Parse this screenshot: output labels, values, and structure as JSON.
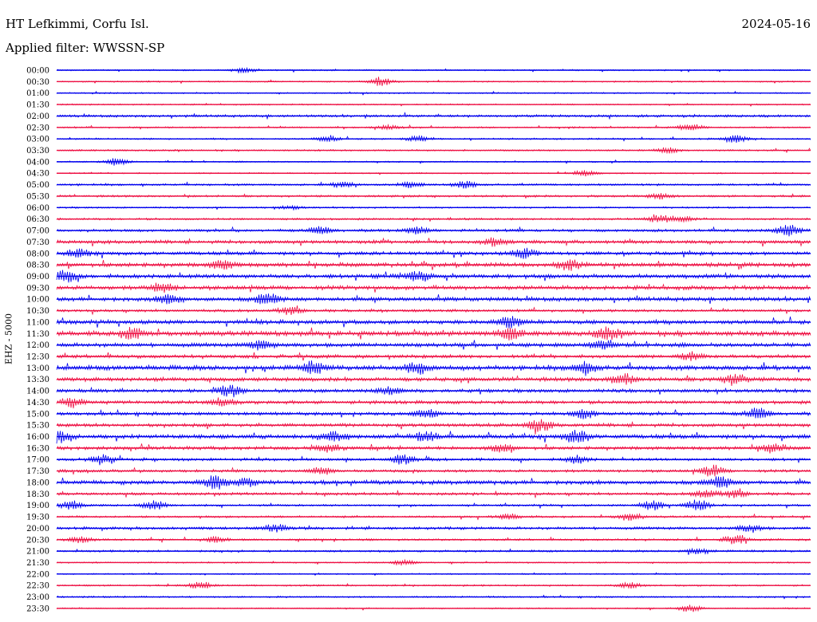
{
  "header": {
    "station": "HT Lefkimmi, Corfu Isl.",
    "filter": "Applied filter: WWSSN-SP",
    "date": "2024-05-16"
  },
  "colors": {
    "trace_a": "#0000ee",
    "trace_b": "#ee1144"
  },
  "chart_data": {
    "type": "line",
    "ylabel": "EHZ - 5000",
    "rows": [
      {
        "label": "00:00",
        "level": 1,
        "events": [
          [
            25,
            1.5
          ]
        ]
      },
      {
        "label": "00:30",
        "level": 1,
        "events": [
          [
            43,
            2.5
          ]
        ]
      },
      {
        "label": "01:00",
        "level": 1,
        "events": []
      },
      {
        "label": "01:30",
        "level": 1,
        "events": []
      },
      {
        "label": "02:00",
        "level": 1.8,
        "events": []
      },
      {
        "label": "02:30",
        "level": 1.2,
        "events": [
          [
            44,
            1
          ],
          [
            84,
            2
          ]
        ]
      },
      {
        "label": "03:00",
        "level": 1.2,
        "events": [
          [
            36,
            1.5
          ],
          [
            48,
            1.5
          ],
          [
            90,
            2
          ]
        ]
      },
      {
        "label": "03:30",
        "level": 1.2,
        "events": [
          [
            81,
            1.5
          ]
        ]
      },
      {
        "label": "04:00",
        "level": 1,
        "events": [
          [
            8,
            2
          ]
        ]
      },
      {
        "label": "04:30",
        "level": 1,
        "events": [
          [
            70,
            1.5
          ]
        ]
      },
      {
        "label": "05:00",
        "level": 1.5,
        "events": [
          [
            38,
            1.5
          ],
          [
            47,
            1.5
          ],
          [
            54,
            2
          ]
        ]
      },
      {
        "label": "05:30",
        "level": 1.5,
        "events": [
          [
            80,
            1.5
          ]
        ]
      },
      {
        "label": "06:00",
        "level": 1.2,
        "events": [
          [
            31,
            1
          ]
        ]
      },
      {
        "label": "06:30",
        "level": 1.5,
        "events": [
          [
            80,
            2
          ],
          [
            83,
            1.5
          ]
        ]
      },
      {
        "label": "07:00",
        "level": 2,
        "events": [
          [
            35,
            2
          ],
          [
            48,
            2
          ],
          [
            97,
            3
          ]
        ]
      },
      {
        "label": "07:30",
        "level": 2.5,
        "events": [
          [
            58,
            2
          ]
        ]
      },
      {
        "label": "08:00",
        "level": 2.5,
        "events": [
          [
            3,
            2
          ],
          [
            62,
            2.5
          ]
        ]
      },
      {
        "label": "08:30",
        "level": 3,
        "events": [
          [
            22,
            2.5
          ],
          [
            68,
            2.5
          ]
        ]
      },
      {
        "label": "09:00",
        "level": 3,
        "events": [
          [
            1,
            3
          ],
          [
            48,
            2.5
          ]
        ]
      },
      {
        "label": "09:30",
        "level": 3,
        "events": [
          [
            14,
            2.5
          ]
        ]
      },
      {
        "label": "10:00",
        "level": 3,
        "events": [
          [
            15,
            2.5
          ],
          [
            28,
            3
          ]
        ]
      },
      {
        "label": "10:30",
        "level": 2,
        "events": [
          [
            31,
            2
          ]
        ]
      },
      {
        "label": "11:00",
        "level": 3,
        "events": [
          [
            60,
            3
          ]
        ]
      },
      {
        "label": "11:30",
        "level": 3.5,
        "events": [
          [
            10,
            3
          ],
          [
            60,
            3
          ],
          [
            73,
            3
          ]
        ]
      },
      {
        "label": "12:00",
        "level": 3,
        "events": [
          [
            27,
            2.5
          ],
          [
            72,
            2.5
          ]
        ]
      },
      {
        "label": "12:30",
        "level": 2.5,
        "events": [
          [
            84,
            2
          ]
        ]
      },
      {
        "label": "13:00",
        "level": 3.5,
        "events": [
          [
            34,
            3
          ],
          [
            48,
            3
          ],
          [
            70,
            3
          ]
        ]
      },
      {
        "label": "13:30",
        "level": 3,
        "events": [
          [
            75,
            3
          ],
          [
            90,
            3
          ]
        ]
      },
      {
        "label": "14:00",
        "level": 2.5,
        "events": [
          [
            23,
            3
          ],
          [
            44,
            2
          ]
        ]
      },
      {
        "label": "14:30",
        "level": 2.5,
        "events": [
          [
            2,
            2.5
          ],
          [
            22,
            2
          ]
        ]
      },
      {
        "label": "15:00",
        "level": 2.5,
        "events": [
          [
            49,
            2.5
          ],
          [
            70,
            2.5
          ],
          [
            93,
            3
          ]
        ]
      },
      {
        "label": "15:30",
        "level": 2.5,
        "events": [
          [
            64,
            3.5
          ]
        ]
      },
      {
        "label": "16:00",
        "level": 3,
        "events": [
          [
            0,
            3
          ],
          [
            37,
            2.5
          ],
          [
            49,
            3
          ],
          [
            69,
            3.5
          ]
        ]
      },
      {
        "label": "16:30",
        "level": 2.5,
        "events": [
          [
            36,
            2
          ],
          [
            59,
            2
          ],
          [
            95,
            2.5
          ]
        ]
      },
      {
        "label": "17:00",
        "level": 2,
        "events": [
          [
            6,
            2.5
          ],
          [
            46,
            2.5
          ],
          [
            69,
            2
          ]
        ]
      },
      {
        "label": "17:30",
        "level": 2,
        "events": [
          [
            35,
            2
          ],
          [
            87,
            3
          ]
        ]
      },
      {
        "label": "18:00",
        "level": 3,
        "events": [
          [
            21,
            3.5
          ],
          [
            25,
            2
          ],
          [
            88,
            3
          ]
        ]
      },
      {
        "label": "18:30",
        "level": 2,
        "events": [
          [
            86,
            2
          ],
          [
            90,
            2
          ]
        ]
      },
      {
        "label": "19:00",
        "level": 1.5,
        "events": [
          [
            2,
            2.5
          ],
          [
            13,
            2.5
          ],
          [
            79,
            3
          ],
          [
            85,
            3
          ]
        ]
      },
      {
        "label": "19:30",
        "level": 1.5,
        "events": [
          [
            60,
            1.5
          ],
          [
            76,
            2
          ]
        ]
      },
      {
        "label": "20:00",
        "level": 2,
        "events": [
          [
            29,
            2
          ],
          [
            92,
            2
          ]
        ]
      },
      {
        "label": "20:30",
        "level": 1.5,
        "events": [
          [
            3,
            2
          ],
          [
            21,
            1.5
          ],
          [
            90,
            2.5
          ]
        ]
      },
      {
        "label": "21:00",
        "level": 1.5,
        "events": [
          [
            85,
            1.5
          ]
        ]
      },
      {
        "label": "21:30",
        "level": 1,
        "events": [
          [
            46,
            1.5
          ]
        ]
      },
      {
        "label": "22:00",
        "level": 1,
        "events": []
      },
      {
        "label": "22:30",
        "level": 1.2,
        "events": [
          [
            19,
            2
          ],
          [
            76,
            1.5
          ]
        ]
      },
      {
        "label": "23:00",
        "level": 1.2,
        "events": []
      },
      {
        "label": "23:30",
        "level": 1,
        "events": [
          [
            84,
            2
          ]
        ]
      }
    ]
  }
}
